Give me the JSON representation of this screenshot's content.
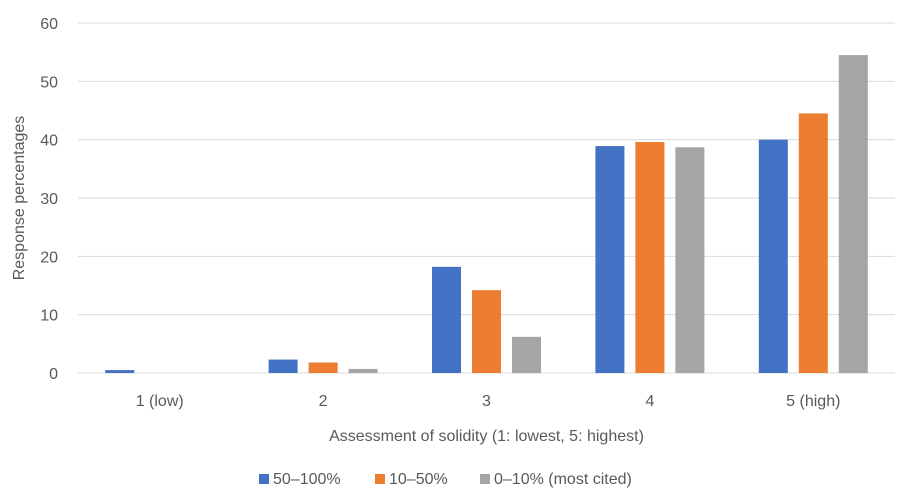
{
  "chart_data": {
    "type": "bar",
    "title": "",
    "xlabel": "Assessment of solidity (1: lowest, 5: highest)",
    "ylabel": "Response percentages",
    "ylim": [
      0,
      60
    ],
    "yticks": [
      0,
      10,
      20,
      30,
      40,
      50,
      60
    ],
    "grid": true,
    "legend_position": "bottom",
    "categories": [
      "1 (low)",
      "2",
      "3",
      "4",
      "5 (high)"
    ],
    "series": [
      {
        "name": "50–100%",
        "color": "#4472C4",
        "values": [
          0.5,
          2.3,
          18.2,
          38.9,
          40.0
        ]
      },
      {
        "name": "10–50%",
        "color": "#ED7D31",
        "values": [
          0,
          1.8,
          14.2,
          39.6,
          44.5
        ]
      },
      {
        "name": "0–10% (most cited)",
        "color": "#A5A5A5",
        "values": [
          0,
          0.7,
          6.2,
          38.7,
          54.5
        ]
      }
    ]
  }
}
